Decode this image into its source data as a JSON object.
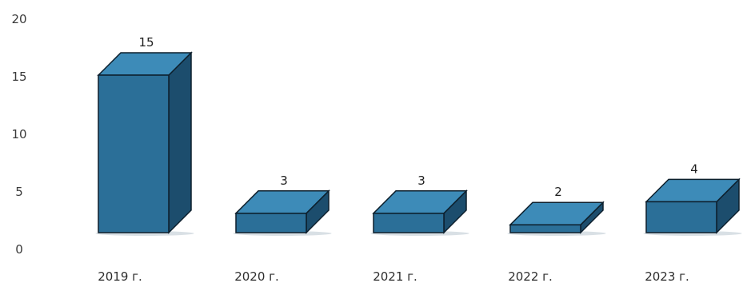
{
  "chart_data": {
    "type": "bar",
    "style": "3d-column",
    "categories": [
      "2019 г.",
      "2020 г.",
      "2021 г.",
      "2022 г.",
      "2023 г."
    ],
    "values": [
      15,
      3,
      3,
      2,
      4
    ],
    "data_labels": [
      "15",
      "3",
      "3",
      "2",
      "4"
    ],
    "title": "",
    "xlabel": "",
    "ylabel": "",
    "ylim": [
      0,
      20
    ],
    "yticks": [
      0,
      5,
      10,
      15,
      20
    ],
    "ytick_labels": [
      "0",
      "5",
      "10",
      "15",
      "20"
    ],
    "grid": false,
    "legend": "none",
    "colors": {
      "front": "#2b6f98",
      "top": "#3d8bb8",
      "side": "#1c4d6d",
      "edge": "#0d1f2c"
    }
  }
}
